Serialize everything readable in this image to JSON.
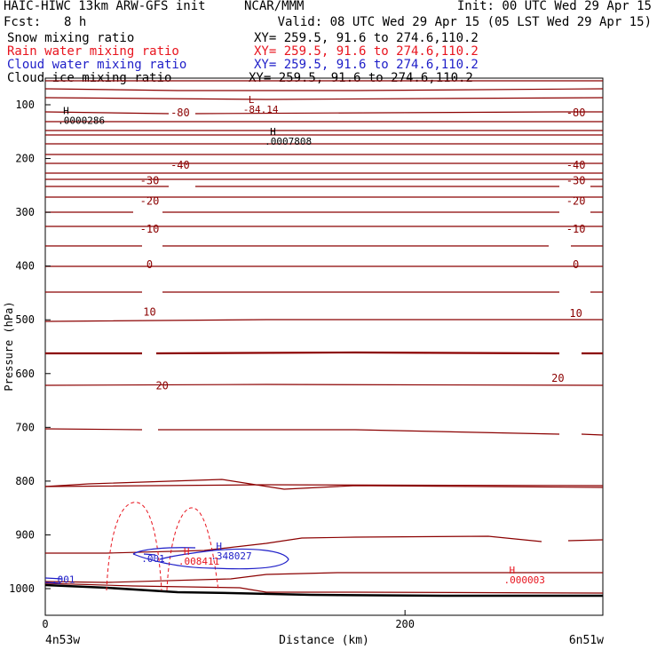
{
  "header": {
    "model_title": "HAIC-HIWC 13km ARW-GFS init",
    "org": "NCAR/MMM",
    "init": "Init: 00 UTC Wed 29 Apr 15",
    "fcst_label": "Fcst:",
    "fcst_value": "8 h",
    "valid": "Valid: 08 UTC Wed 29 Apr 15 (05 LST Wed 29 Apr 15)",
    "fields": [
      {
        "label": "Snow mixing ratio",
        "xy": "XY= 259.5, 91.6 to 274.6,110.2",
        "color": "#000000"
      },
      {
        "label": "Rain water mixing ratio",
        "xy": "XY= 259.5, 91.6 to 274.6,110.2",
        "color": "#e8141e"
      },
      {
        "label": "Cloud water mixing ratio",
        "xy": "XY= 259.5, 91.6 to 274.6,110.2",
        "color": "#1e1ec8"
      },
      {
        "label": "Cloud ice mixing ratio",
        "xy": "XY= 259.5, 91.6 to 274.6,110.2",
        "color": "#000000"
      }
    ]
  },
  "chart_data": {
    "type": "cross-section contour",
    "xlabel": "Distance (km)",
    "ylabel": "Pressure (hPa)",
    "xlim": [
      0,
      310
    ],
    "ylim": [
      1050,
      52
    ],
    "x_ticks": [
      "0",
      "200"
    ],
    "y_ticks": [
      "100",
      "200",
      "300",
      "400",
      "500",
      "600",
      "700",
      "800",
      "900",
      "1000"
    ],
    "left_endpoint": "4n53w",
    "right_endpoint": "6n51w",
    "temperature_contours": {
      "color": "#8b0000",
      "labels": [
        {
          "text": "-80",
          "x": 75,
          "p": 115
        },
        {
          "text": "-80",
          "x": 295,
          "p": 115
        },
        {
          "text": "-40",
          "x": 75,
          "p": 212
        },
        {
          "text": "-40",
          "x": 295,
          "p": 212
        },
        {
          "text": "-30",
          "x": 58,
          "p": 241
        },
        {
          "text": "-30",
          "x": 295,
          "p": 241
        },
        {
          "text": "-20",
          "x": 58,
          "p": 279
        },
        {
          "text": "-20",
          "x": 295,
          "p": 279
        },
        {
          "text": "-10",
          "x": 58,
          "p": 331
        },
        {
          "text": "-10",
          "x": 295,
          "p": 331
        },
        {
          "text": "0",
          "x": 58,
          "p": 397
        },
        {
          "text": "0",
          "x": 295,
          "p": 397
        },
        {
          "text": "10",
          "x": 58,
          "p": 486
        },
        {
          "text": "10",
          "x": 295,
          "p": 488
        },
        {
          "text": "20",
          "x": 285,
          "p": 609
        },
        {
          "text": "20",
          "x": 65,
          "p": 623
        }
      ]
    },
    "extrema": [
      {
        "type": "L",
        "value": "-84.14",
        "x": 108,
        "p": 97,
        "color": "#8b0000"
      },
      {
        "type": "H",
        "value": ".0000286",
        "x": 5,
        "p": 117,
        "color": "#000000"
      },
      {
        "type": "H",
        "value": ".0007808",
        "x": 120,
        "p": 156,
        "color": "#000000"
      },
      {
        "type": "H",
        "value": ".008411",
        "x": 72,
        "p": 937,
        "color": "#e8141e"
      },
      {
        "type": "H",
        "value": ".348027",
        "x": 90,
        "p": 927,
        "color": "#1e1ec8"
      },
      {
        "type": "H",
        "value": ".000003",
        "x": 253,
        "p": 972,
        "color": "#e8141e"
      }
    ],
    "cloud_water_labels": [
      {
        "text": ".001",
        "x": 10,
        "p": 983
      },
      {
        "text": ".001",
        "x": 60,
        "p": 944
      }
    ]
  }
}
